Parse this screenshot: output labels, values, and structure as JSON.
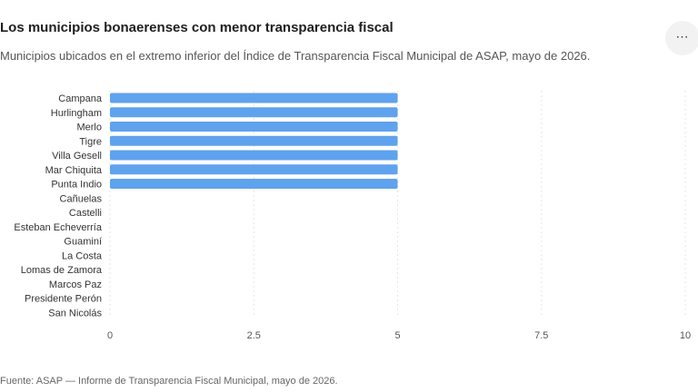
{
  "header": {
    "title": "Los municipios bonaerenses con menor transparencia fiscal",
    "subtitle": "Municipios ubicados en el extremo inferior del Índice de Transparencia Fiscal Municipal de ASAP, mayo de 2026.",
    "menu_icon": "more-horizontal-icon",
    "menu_label": "⋯"
  },
  "chart_data": {
    "type": "bar",
    "orientation": "horizontal",
    "categories": [
      "Campana",
      "Hurlingham",
      "Merlo",
      "Tigre",
      "Villa Gesell",
      "Mar Chiquita",
      "Punta Indio",
      "Cañuelas",
      "Castelli",
      "Esteban Echeverría",
      "Guaminí",
      "La Costa",
      "Lomas de Zamora",
      "Marcos Paz",
      "Presidente Perón",
      "San Nicolás"
    ],
    "values": [
      5,
      5,
      5,
      5,
      5,
      5,
      5,
      0,
      0,
      0,
      0,
      0,
      0,
      0,
      0,
      0
    ],
    "xlim": [
      0,
      10
    ],
    "xticks": [
      0,
      2.5,
      5,
      7.5,
      10
    ],
    "xtick_labels": [
      "0",
      "2.5",
      "5",
      "7.5",
      "10"
    ],
    "title": "",
    "xlabel": "",
    "ylabel": "",
    "grid": true,
    "bar_color": "#5fa2ee"
  },
  "footer": {
    "source": "Fuente: ASAP — Informe de Transparencia Fiscal Municipal, mayo de 2026."
  }
}
